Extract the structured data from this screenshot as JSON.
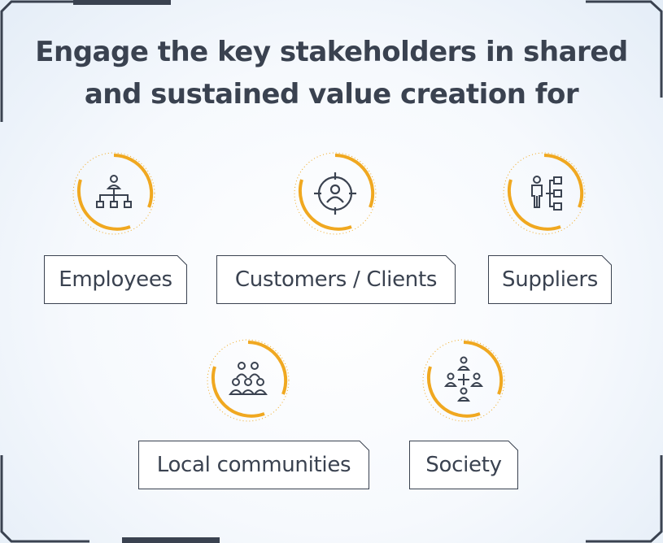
{
  "heading": {
    "line1": "Engage the key stakeholders in shared",
    "line2": "and sustained value creation for"
  },
  "colors": {
    "accent": "#f0a820",
    "text": "#3a4250",
    "icon": "#3a4250"
  },
  "stakeholders": [
    {
      "label": "Employees",
      "icon": "org-chart-icon"
    },
    {
      "label": "Customers / Clients",
      "icon": "target-person-icon"
    },
    {
      "label": "Suppliers",
      "icon": "person-hierarchy-icon"
    },
    {
      "label": "Local communities",
      "icon": "group-people-icon"
    },
    {
      "label": "Society",
      "icon": "people-network-icon"
    }
  ]
}
